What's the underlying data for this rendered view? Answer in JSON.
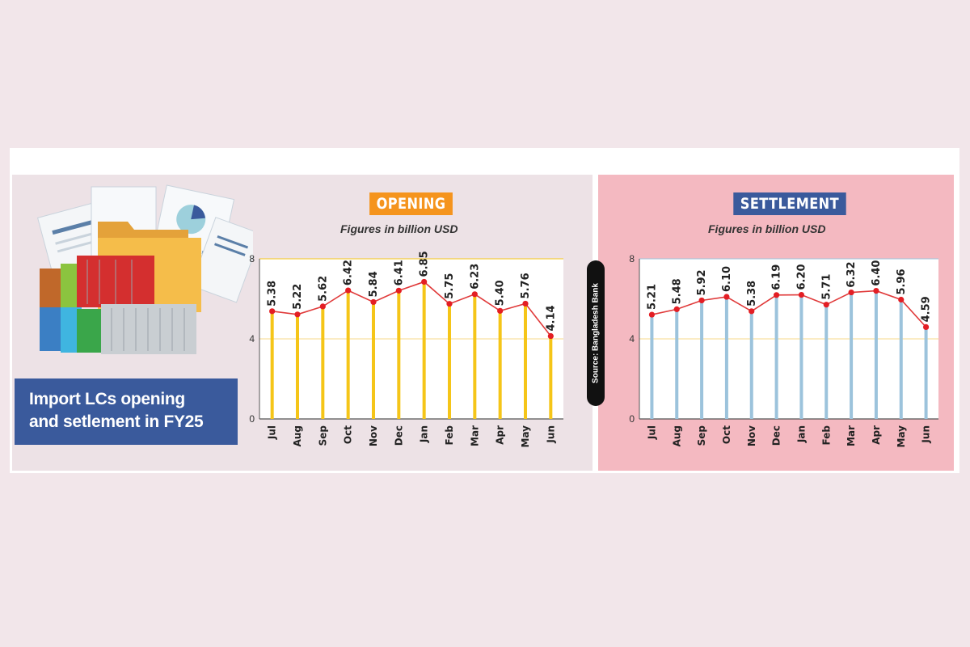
{
  "title_lines": [
    "Import LCs opening",
    "and setlement in FY25"
  ],
  "source_text": "Source: Bangladesh Bank",
  "colors": {
    "opening_bar": "#f5c518",
    "settlement_bar": "#9cc3dc",
    "line": "#e03a3a",
    "marker": "#e31e24",
    "opening_tag": "#f5941d",
    "settlement_tag": "#3a5a9c"
  },
  "chart_data": [
    {
      "type": "bar",
      "title": "OPENING",
      "subtitle": "Figures in billion USD",
      "categories": [
        "Jul",
        "Aug",
        "Sep",
        "Oct",
        "Nov",
        "Dec",
        "Jan",
        "Feb",
        "Mar",
        "Apr",
        "May",
        "Jun"
      ],
      "values": [
        5.38,
        5.22,
        5.62,
        6.42,
        5.84,
        6.41,
        6.85,
        5.75,
        6.23,
        5.4,
        5.76,
        4.14
      ],
      "labels": [
        "5.38",
        "5.22",
        "5.62",
        "6.42",
        "5.84",
        "6.41",
        "6.85",
        "5.75",
        "6.23",
        "5.40",
        "5.76",
        "4.14"
      ],
      "ylim": [
        0,
        8
      ],
      "yticks": [
        "0",
        "4",
        "8"
      ]
    },
    {
      "type": "bar",
      "title": "SETTLEMENT",
      "subtitle": "Figures in billion USD",
      "categories": [
        "Jul",
        "Aug",
        "Sep",
        "Oct",
        "Nov",
        "Dec",
        "Jan",
        "Feb",
        "Mar",
        "Apr",
        "May",
        "Jun"
      ],
      "values": [
        5.21,
        5.48,
        5.92,
        6.1,
        5.38,
        6.19,
        6.2,
        5.71,
        6.32,
        6.4,
        5.96,
        4.59
      ],
      "labels": [
        "5.21",
        "5.48",
        "5.92",
        "6.10",
        "5.38",
        "6.19",
        "6.20",
        "5.71",
        "6.32",
        "6.40",
        "5.96",
        "4.59"
      ],
      "ylim": [
        0,
        8
      ],
      "yticks": [
        "0",
        "4",
        "8"
      ]
    }
  ]
}
